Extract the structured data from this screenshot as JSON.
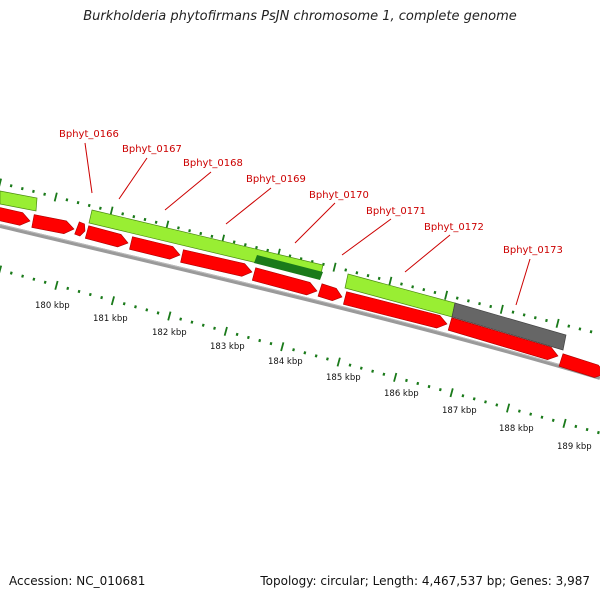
{
  "title": "Burkholderia phytofirmans PsJN chromosome 1, complete genome",
  "footer": {
    "accession": "Accession: NC_010681",
    "summary": "Topology: circular; Length: 4,467,537 bp; Genes: 3,987"
  },
  "colors": {
    "cds": "#ff0000",
    "feature_light_green": "#99ee33",
    "feature_dark_green": "#1a7a1a",
    "feature_gray": "#666666",
    "backbone": "#888888",
    "ticks": "#1a7a1a",
    "label": "#cc0000"
  },
  "genes": [
    {
      "name": "Bphyt_0166"
    },
    {
      "name": "Bphyt_0167"
    },
    {
      "name": "Bphyt_0168"
    },
    {
      "name": "Bphyt_0169"
    },
    {
      "name": "Bphyt_0170"
    },
    {
      "name": "Bphyt_0171"
    },
    {
      "name": "Bphyt_0172"
    },
    {
      "name": "Bphyt_0173"
    }
  ],
  "scale": [
    "180 kbp",
    "181 kbp",
    "182 kbp",
    "183 kbp",
    "184 kbp",
    "185 kbp",
    "186 kbp",
    "187 kbp",
    "188 kbp",
    "189 kbp"
  ]
}
